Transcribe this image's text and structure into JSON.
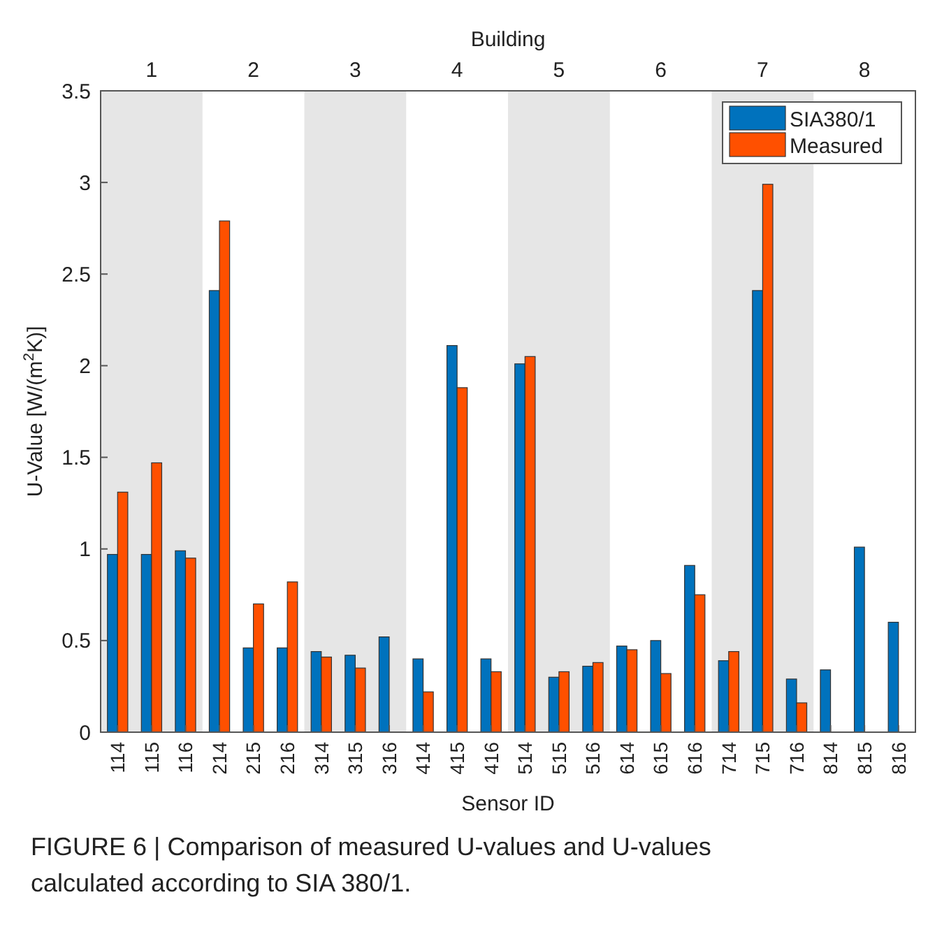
{
  "chart_data": {
    "type": "bar",
    "xlabel": "Sensor ID",
    "ylabel": "U-Value [W/(m$^{2}$K)]",
    "x2label": "Building",
    "categories": [
      "114",
      "115",
      "116",
      "214",
      "215",
      "216",
      "314",
      "315",
      "316",
      "414",
      "415",
      "416",
      "514",
      "515",
      "516",
      "614",
      "615",
      "616",
      "714",
      "715",
      "716",
      "814",
      "815",
      "816"
    ],
    "series": [
      {
        "name": "SIA380/1",
        "color": "#0072bd",
        "values": [
          0.97,
          0.97,
          0.99,
          2.41,
          0.46,
          0.46,
          0.44,
          0.42,
          0.52,
          0.4,
          2.11,
          0.4,
          2.01,
          0.3,
          0.36,
          0.47,
          0.5,
          0.91,
          0.39,
          2.41,
          0.29,
          0.34,
          1.01,
          0.6
        ]
      },
      {
        "name": "Measured",
        "color": "#ff5000",
        "values": [
          1.31,
          1.47,
          0.95,
          2.79,
          0.7,
          0.82,
          0.41,
          0.35,
          null,
          0.22,
          1.88,
          0.33,
          2.05,
          0.33,
          0.38,
          0.45,
          0.32,
          0.75,
          0.44,
          2.99,
          0.16,
          null,
          null,
          null
        ]
      }
    ],
    "bands": [
      {
        "axis": "x",
        "from": "114",
        "to": "116",
        "label": "1",
        "color": "#e6e6e6"
      },
      {
        "axis": "x",
        "from": "314",
        "to": "316",
        "label": "3",
        "color": "#e6e6e6"
      },
      {
        "axis": "x",
        "from": "514",
        "to": "516",
        "label": "5",
        "color": "#e6e6e6"
      },
      {
        "axis": "x",
        "from": "714",
        "to": "716",
        "label": "7",
        "color": "#e6e6e6"
      }
    ],
    "ylim": [
      0,
      3.5
    ],
    "yticks": [
      0,
      0.5,
      1,
      1.5,
      2,
      2.5,
      3,
      3.5
    ],
    "grid": false,
    "legend": "top right",
    "annotations": [
      "2",
      "4",
      "6",
      "8",
      "FIGURE 6 | Comparison of measured U-values and U-values calculated according to SIA 380/1."
    ]
  }
}
